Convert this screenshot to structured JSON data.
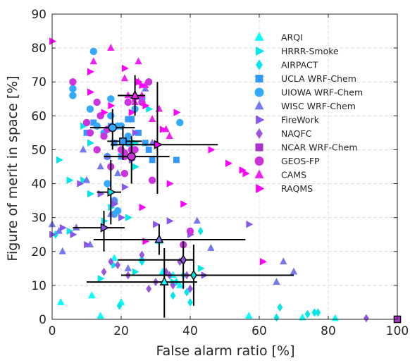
{
  "chart_data": {
    "type": "scatter",
    "xlabel": "False alarm ratio [%]",
    "ylabel": "Figure of merit in space [%]",
    "xlim": [
      0,
      100
    ],
    "ylim": [
      0,
      90
    ],
    "xticks": [
      0,
      20,
      40,
      60,
      80,
      100
    ],
    "yticks": [
      0,
      10,
      20,
      30,
      40,
      50,
      60,
      70,
      80,
      90
    ],
    "grid": true,
    "legend_position": "top-right",
    "series": [
      {
        "name": "ARQI",
        "marker": "triangle-up",
        "color": "#00ffff",
        "points": [
          [
            2.5,
            5
          ],
          [
            11.5,
            7
          ],
          [
            14,
            1
          ],
          [
            20,
            5
          ],
          [
            26,
            18
          ],
          [
            32,
            14
          ],
          [
            35,
            13
          ],
          [
            37,
            10
          ],
          [
            57,
            1
          ],
          [
            72.5,
            0.5
          ],
          [
            82,
            0.3
          ],
          [
            31,
            23
          ],
          [
            18,
            18
          ]
        ],
        "mean": [
          32.5,
          11
        ],
        "xerr": [
          10,
          42
        ],
        "yerr": [
          0.5,
          21
        ]
      },
      {
        "name": "HRRR-Smoke",
        "marker": "triangle-right",
        "color": "#00e6e6",
        "points": [
          [
            2,
            47
          ],
          [
            5,
            41
          ],
          [
            5,
            26
          ],
          [
            9,
            41
          ],
          [
            9,
            57
          ],
          [
            11,
            52
          ],
          [
            11,
            37
          ],
          [
            14,
            12
          ],
          [
            15,
            29
          ],
          [
            17,
            33
          ],
          [
            18,
            16
          ],
          [
            22,
            30
          ],
          [
            24,
            52
          ],
          [
            24,
            45
          ],
          [
            24,
            14
          ],
          [
            28,
            62
          ],
          [
            35,
            11
          ],
          [
            43,
            15
          ]
        ],
        "mean": [
          17,
          37.5
        ],
        "xerr": [
          13,
          20
        ],
        "yerr": [
          28,
          47
        ]
      },
      {
        "name": "AIRPACT",
        "marker": "diamond",
        "color": "#00e6e6",
        "points": [
          [
            1,
            25
          ],
          [
            19.5,
            4
          ],
          [
            26,
            17
          ],
          [
            35,
            7
          ],
          [
            36,
            11
          ],
          [
            38,
            13
          ],
          [
            39,
            8
          ],
          [
            40,
            5
          ],
          [
            43,
            26
          ],
          [
            65,
            0.5
          ],
          [
            66,
            3.5
          ],
          [
            74,
            1.5
          ],
          [
            76,
            2
          ],
          [
            77,
            2
          ]
        ],
        "mean": [
          41,
          13
        ],
        "xerr": [
          20,
          70
        ],
        "yerr": [
          4,
          22
        ]
      },
      {
        "name": "UCLA WRF-Chem",
        "marker": "square",
        "color": "#3399ff",
        "points": [
          [
            10,
            55
          ],
          [
            12,
            58
          ],
          [
            17,
            57
          ],
          [
            18,
            52
          ],
          [
            22,
            59
          ],
          [
            23,
            59
          ],
          [
            25,
            55
          ],
          [
            27,
            52
          ],
          [
            28,
            50
          ],
          [
            29,
            47
          ],
          [
            36,
            47
          ],
          [
            20,
            48
          ]
        ],
        "mean": [
          20.5,
          52.5
        ],
        "xerr": [
          16,
          26
        ],
        "yerr": [
          47,
          57
        ]
      },
      {
        "name": "UIOWA WRF-Chem",
        "marker": "circle",
        "color": "#33aaff",
        "points": [
          [
            6,
            68
          ],
          [
            6,
            66
          ],
          [
            11,
            62
          ],
          [
            12,
            79
          ],
          [
            13,
            57
          ],
          [
            15,
            55
          ],
          [
            16,
            48
          ],
          [
            17,
            65
          ],
          [
            17,
            60
          ],
          [
            18,
            35
          ],
          [
            18,
            31
          ],
          [
            19,
            32
          ],
          [
            19,
            57
          ],
          [
            20,
            57
          ],
          [
            22,
            52
          ],
          [
            22,
            54
          ],
          [
            24,
            62
          ],
          [
            26,
            65
          ],
          [
            37,
            58
          ],
          [
            16,
            40
          ]
        ],
        "mean": [
          17.5,
          56.5
        ],
        "xerr": [
          11,
          24
        ],
        "yerr": [
          50,
          62
        ]
      },
      {
        "name": "WISC WRF-Chem",
        "marker": "triangle-up",
        "color": "#7777ee",
        "points": [
          [
            0,
            28
          ],
          [
            2,
            26
          ],
          [
            3,
            20
          ],
          [
            7,
            27
          ],
          [
            9,
            50
          ],
          [
            10,
            41
          ],
          [
            11,
            22
          ],
          [
            14,
            45
          ],
          [
            16,
            48
          ],
          [
            17,
            31
          ],
          [
            19,
            43
          ],
          [
            22,
            15
          ],
          [
            27,
            68
          ],
          [
            29,
            52
          ],
          [
            42,
            29
          ],
          [
            46,
            21
          ],
          [
            65,
            11
          ],
          [
            67,
            17
          ],
          [
            70,
            14
          ],
          [
            18,
            35
          ]
        ],
        "mean": [
          31,
          23.5
        ],
        "xerr": [
          12,
          56
        ],
        "yerr": [
          19,
          28
        ]
      },
      {
        "name": "FireWork",
        "marker": "triangle-right",
        "color": "#8855ee",
        "points": [
          [
            0,
            25
          ],
          [
            3,
            27
          ],
          [
            6,
            25
          ],
          [
            8,
            40
          ],
          [
            10,
            22
          ],
          [
            14,
            37
          ],
          [
            18,
            34
          ],
          [
            20,
            30
          ],
          [
            21,
            39
          ],
          [
            23,
            47
          ],
          [
            24,
            55
          ],
          [
            26,
            33
          ],
          [
            30,
            28
          ],
          [
            34,
            29
          ],
          [
            40,
            25
          ],
          [
            44,
            13
          ],
          [
            57,
            28
          ]
        ],
        "mean": [
          15,
          27
        ],
        "xerr": [
          6,
          21
        ],
        "yerr": [
          20,
          32
        ]
      },
      {
        "name": "NAQFC",
        "marker": "diamond",
        "color": "#9955dd",
        "points": [
          [
            15,
            14
          ],
          [
            17,
            17
          ],
          [
            19,
            16
          ],
          [
            22,
            13
          ],
          [
            28,
            9
          ],
          [
            30,
            11
          ],
          [
            33,
            14
          ],
          [
            34,
            13
          ],
          [
            35,
            10
          ],
          [
            37,
            17
          ],
          [
            39,
            13
          ],
          [
            40,
            9
          ],
          [
            91,
            0.3
          ],
          [
            26,
            19
          ]
        ],
        "mean": [
          38,
          17.5
        ],
        "xerr": [
          19,
          41
        ],
        "yerr": [
          9,
          23
        ]
      },
      {
        "name": "NCAR WRF-Chem",
        "marker": "square",
        "color": "#aa33cc",
        "points": [
          [
            100,
            0
          ]
        ],
        "mean": [
          100,
          0
        ],
        "xerr": [
          100,
          100
        ],
        "yerr": [
          0,
          0
        ]
      },
      {
        "name": "GEOS-FP",
        "marker": "circle",
        "color": "#cc33dd",
        "points": [
          [
            6,
            70
          ],
          [
            10,
            58
          ],
          [
            11,
            55
          ],
          [
            13,
            64
          ],
          [
            13,
            50
          ],
          [
            14,
            60
          ],
          [
            15,
            54
          ],
          [
            16,
            56
          ],
          [
            17,
            45
          ],
          [
            20,
            50
          ],
          [
            21,
            49
          ],
          [
            21,
            48
          ],
          [
            21,
            43
          ],
          [
            23,
            50
          ],
          [
            24,
            50
          ],
          [
            26,
            64
          ],
          [
            28,
            70
          ],
          [
            29,
            41
          ],
          [
            38,
            22
          ],
          [
            40,
            26
          ],
          [
            22,
            64
          ]
        ],
        "mean": [
          23,
          48
        ],
        "xerr": [
          15,
          34
        ],
        "yerr": [
          40,
          54
        ]
      },
      {
        "name": "CAMS",
        "marker": "triangle-up",
        "color": "#ee22ee",
        "points": [
          [
            12,
            76
          ],
          [
            17,
            80
          ],
          [
            21,
            71
          ],
          [
            25,
            76
          ],
          [
            25,
            70
          ],
          [
            26,
            66
          ],
          [
            27,
            69
          ],
          [
            29,
            59
          ],
          [
            31,
            62
          ],
          [
            33,
            56
          ],
          [
            34,
            54
          ],
          [
            22,
            66
          ],
          [
            24,
            64
          ]
        ],
        "mean": [
          24,
          66
        ],
        "xerr": [
          19,
          27
        ],
        "yerr": [
          60,
          72
        ]
      },
      {
        "name": "RAQMS",
        "marker": "triangle-right",
        "color": "#ff00ff",
        "points": [
          [
            0,
            82
          ],
          [
            11,
            73
          ],
          [
            11,
            67
          ],
          [
            15,
            61
          ],
          [
            17,
            63
          ],
          [
            21,
            74
          ],
          [
            23,
            61
          ],
          [
            24,
            65
          ],
          [
            25,
            70
          ],
          [
            26,
            69
          ],
          [
            26,
            33
          ],
          [
            27,
            63
          ],
          [
            34,
            40
          ],
          [
            36,
            61
          ],
          [
            38,
            34
          ],
          [
            46,
            50
          ],
          [
            51,
            46
          ],
          [
            55,
            44
          ],
          [
            56,
            43
          ],
          [
            61,
            17
          ],
          [
            27,
            23
          ],
          [
            32,
            56
          ]
        ],
        "mean": [
          30.5,
          51.5
        ],
        "xerr": [
          17,
          48
        ],
        "yerr": [
          37,
          70
        ]
      }
    ]
  }
}
